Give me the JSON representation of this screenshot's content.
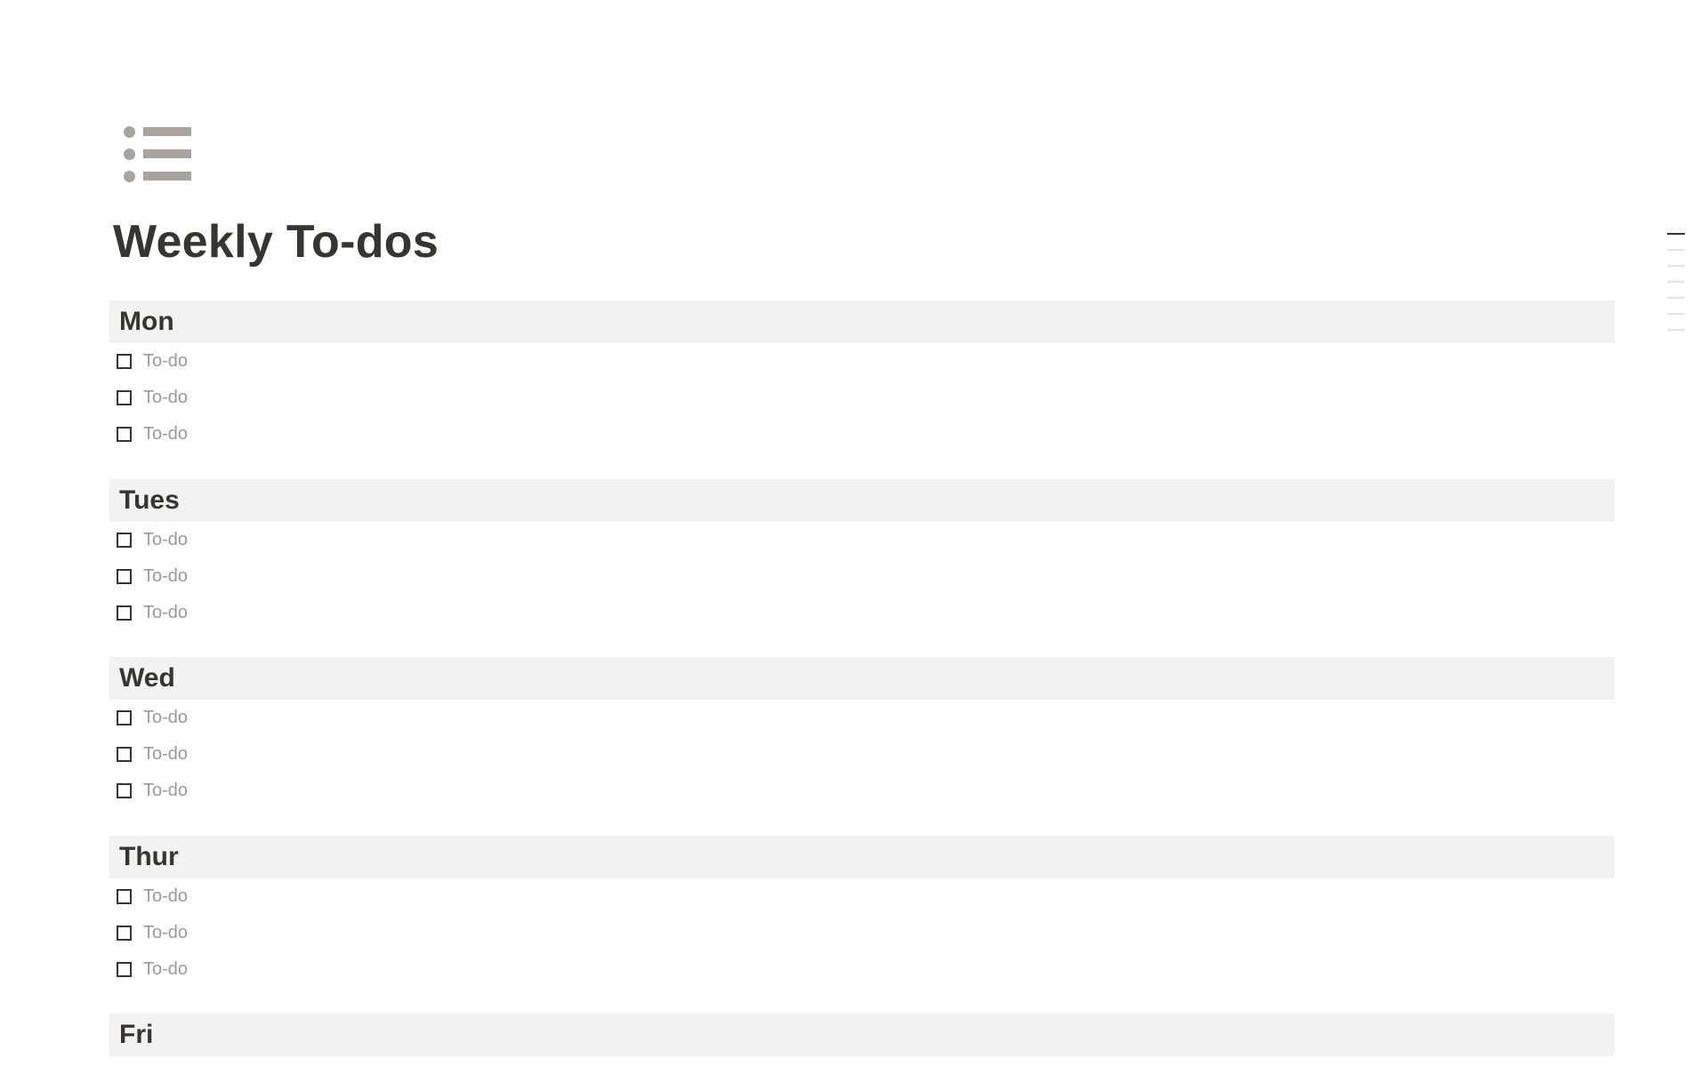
{
  "page": {
    "icon": "bulleted-list-icon",
    "title": "Weekly To-dos"
  },
  "sections": [
    {
      "heading": "Mon",
      "items": [
        {
          "label": "To-do",
          "checked": false
        },
        {
          "label": "To-do",
          "checked": false
        },
        {
          "label": "To-do",
          "checked": false
        }
      ]
    },
    {
      "heading": "Tues",
      "items": [
        {
          "label": "To-do",
          "checked": false
        },
        {
          "label": "To-do",
          "checked": false
        },
        {
          "label": "To-do",
          "checked": false
        }
      ]
    },
    {
      "heading": "Wed",
      "items": [
        {
          "label": "To-do",
          "checked": false
        },
        {
          "label": "To-do",
          "checked": false
        },
        {
          "label": "To-do",
          "checked": false
        }
      ]
    },
    {
      "heading": "Thur",
      "items": [
        {
          "label": "To-do",
          "checked": false
        },
        {
          "label": "To-do",
          "checked": false
        },
        {
          "label": "To-do",
          "checked": false
        }
      ]
    },
    {
      "heading": "Fri",
      "items": []
    }
  ],
  "outline": {
    "entries": 7,
    "active_index": 0
  },
  "colors": {
    "text": "#37352f",
    "placeholder": "#9b9a97",
    "heading_bg": "#f3f1f1",
    "icon": "#a8a39d"
  }
}
